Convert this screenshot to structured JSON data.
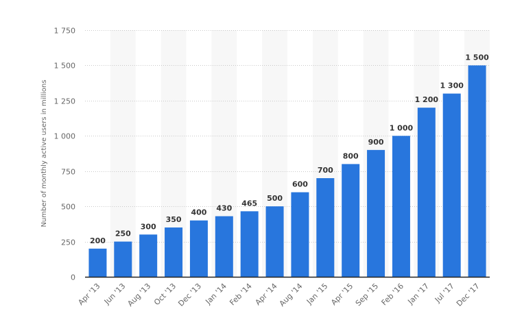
{
  "chart_data": {
    "type": "bar",
    "title": "",
    "xlabel": "",
    "ylabel": "Number of monthly active users in millions",
    "categories": [
      "Apr '13",
      "Jun '13",
      "Aug '13",
      "Oct '13",
      "Dec '13",
      "Jan '14",
      "Feb '14",
      "Apr '14",
      "Aug '14",
      "Jan '15",
      "Apr '15",
      "Sep '15",
      "Feb '16",
      "Jan '17",
      "Jul '17",
      "Dec '17"
    ],
    "values": [
      200,
      250,
      300,
      350,
      400,
      430,
      465,
      500,
      600,
      700,
      800,
      900,
      1000,
      1200,
      1300,
      1500
    ],
    "value_labels": [
      "200",
      "250",
      "300",
      "350",
      "400",
      "430",
      "465",
      "500",
      "600",
      "700",
      "800",
      "900",
      "1 000",
      "1 200",
      "1 300",
      "1 500"
    ],
    "ylim": [
      0,
      1750
    ],
    "yticks": [
      0,
      250,
      500,
      750,
      1000,
      1250,
      1500,
      1750
    ],
    "ytick_labels": [
      "0",
      "250",
      "500",
      "750",
      "1 000",
      "1 250",
      "1 500",
      "1 750"
    ],
    "grid": true,
    "legend": null,
    "bar_color": "#2876dd",
    "band_color": "#f7f7f7"
  }
}
